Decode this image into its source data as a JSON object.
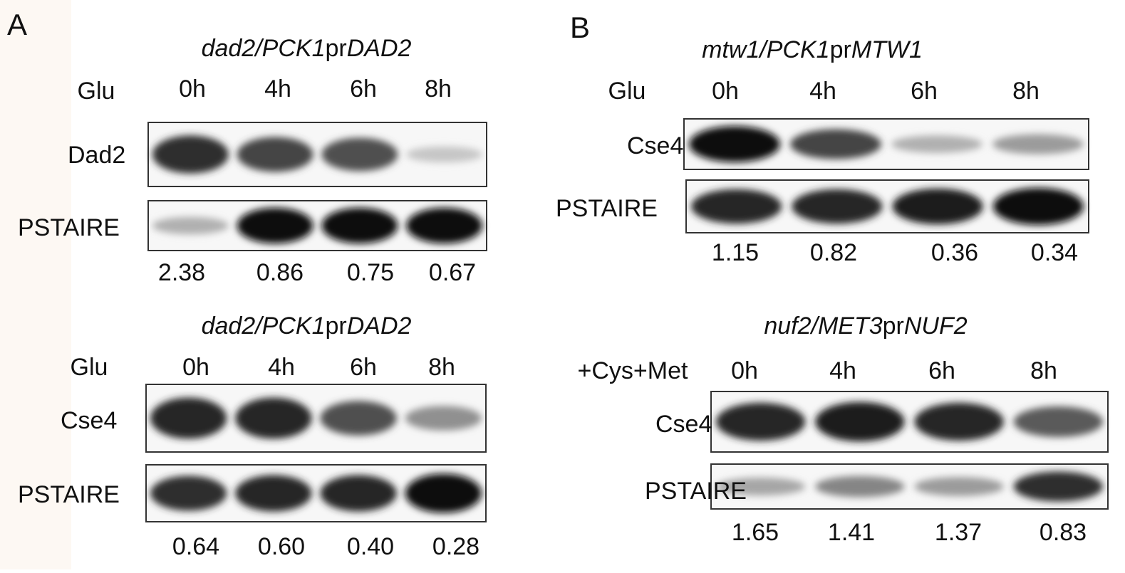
{
  "panels": [
    {
      "label": "A",
      "blots": [
        {
          "title": [
            "dad2/PCK1",
            "pr",
            "DAD2"
          ],
          "treatment": "Glu",
          "timepoints": [
            "0h",
            "4h",
            "6h",
            "8h"
          ],
          "rows": [
            {
              "label": "Dad2"
            },
            {
              "label": "PSTAIRE"
            }
          ],
          "ratios": [
            "2.38",
            "0.86",
            "0.75",
            "0.67"
          ]
        },
        {
          "title": [
            "dad2/PCK1",
            "pr",
            "DAD2"
          ],
          "treatment": "Glu",
          "timepoints": [
            "0h",
            "4h",
            "6h",
            "8h"
          ],
          "rows": [
            {
              "label": "Cse4"
            },
            {
              "label": "PSTAIRE"
            }
          ],
          "ratios": [
            "0.64",
            "0.60",
            "0.40",
            "0.28"
          ]
        }
      ]
    },
    {
      "label": "B",
      "blots": [
        {
          "title": [
            "mtw1/PCK1",
            "pr",
            "MTW1"
          ],
          "treatment": "Glu",
          "timepoints": [
            "0h",
            "4h",
            "6h",
            "8h"
          ],
          "rows": [
            {
              "label": "Cse4"
            },
            {
              "label": "PSTAIRE"
            }
          ],
          "ratios": [
            "1.15",
            "0.82",
            "0.36",
            "0.34"
          ]
        },
        {
          "title": [
            "nuf2/MET3",
            "pr",
            "NUF2"
          ],
          "treatment": "+Cys+Met",
          "timepoints": [
            "0h",
            "4h",
            "6h",
            "8h"
          ],
          "rows": [
            {
              "label": "Cse4"
            },
            {
              "label": "PSTAIRE"
            }
          ],
          "ratios": [
            "1.65",
            "1.41",
            "1.37",
            "0.83"
          ]
        }
      ]
    }
  ]
}
